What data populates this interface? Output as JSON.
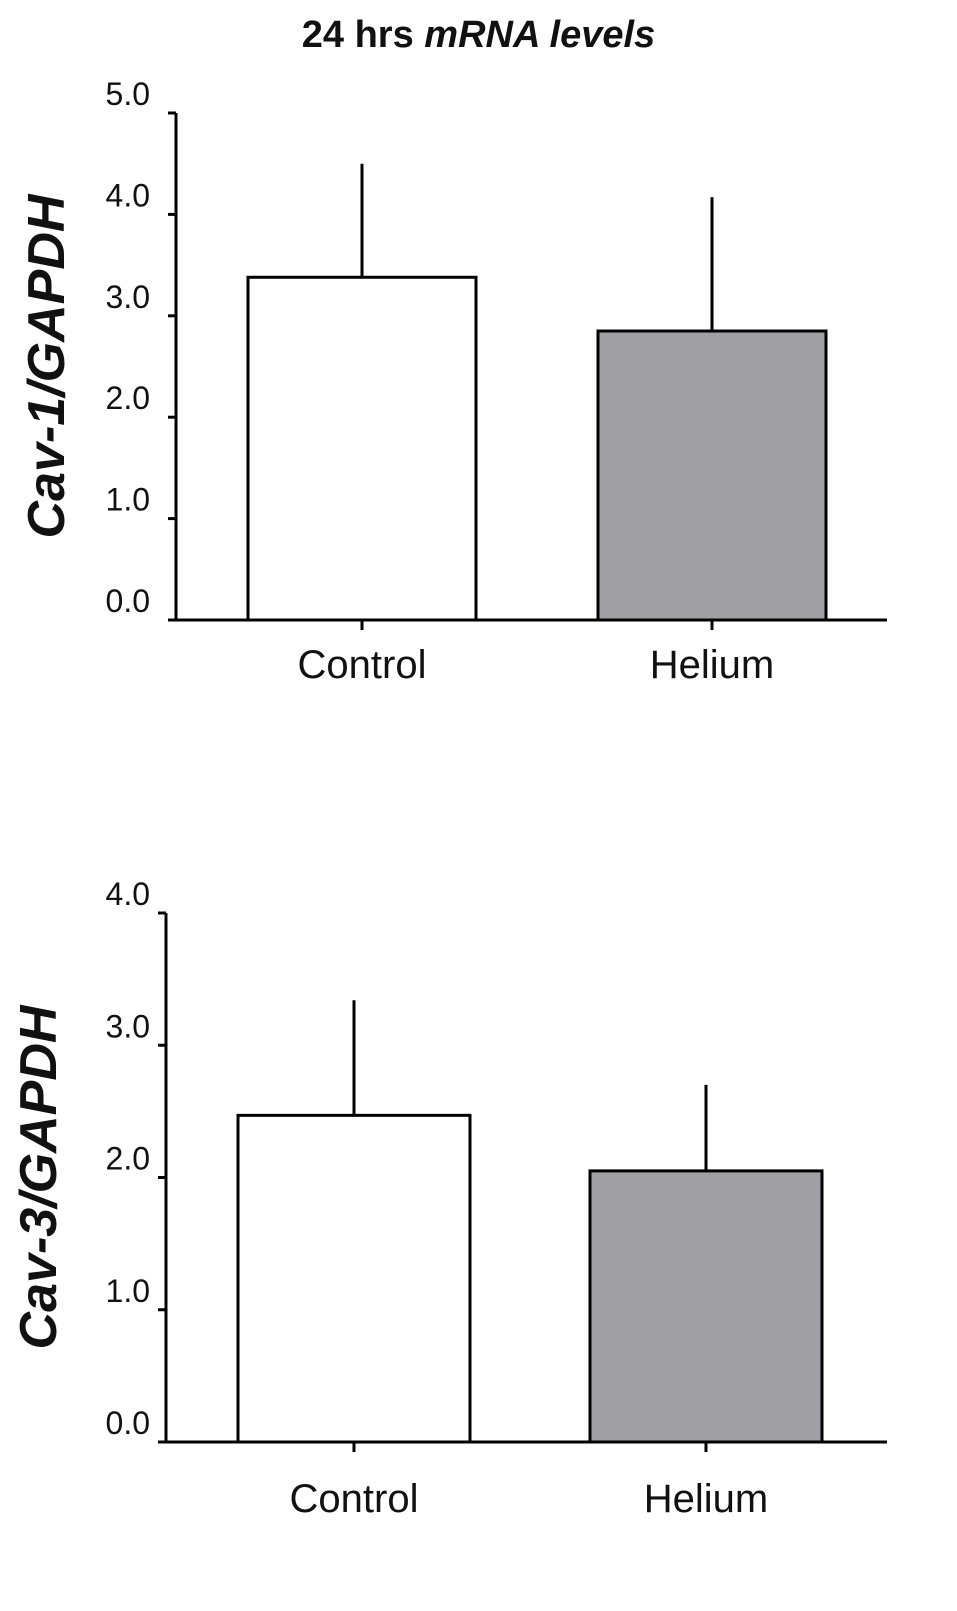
{
  "title": {
    "plain": "24 hrs ",
    "italic": "mRNA levels"
  },
  "colors": {
    "control_fill": "#ffffff",
    "helium_fill": "#a09fa4",
    "stroke": "#000000"
  },
  "chart_data": [
    {
      "type": "bar",
      "categories": [
        "Control",
        "Helium"
      ],
      "values": [
        3.38,
        2.85
      ],
      "error_plus": [
        1.12,
        1.32
      ],
      "ylabel": "Cav-1/GAPDH",
      "ylim": [
        0,
        5
      ],
      "yticks": [
        0,
        1,
        2,
        3,
        4,
        5
      ],
      "ytick_labels": [
        "0.0",
        "1.0",
        "2.0",
        "3.0",
        "4.0",
        "5.0"
      ],
      "grid": false
    },
    {
      "type": "bar",
      "categories": [
        "Control",
        "Helium"
      ],
      "values": [
        2.47,
        2.05
      ],
      "error_plus": [
        0.87,
        0.65
      ],
      "ylabel": "Cav-3/GAPDH",
      "ylim": [
        0,
        4
      ],
      "yticks": [
        0,
        1,
        2,
        3,
        4
      ],
      "ytick_labels": [
        "0.0",
        "1.0",
        "2.0",
        "3.0",
        "4.0"
      ],
      "grid": false
    }
  ]
}
